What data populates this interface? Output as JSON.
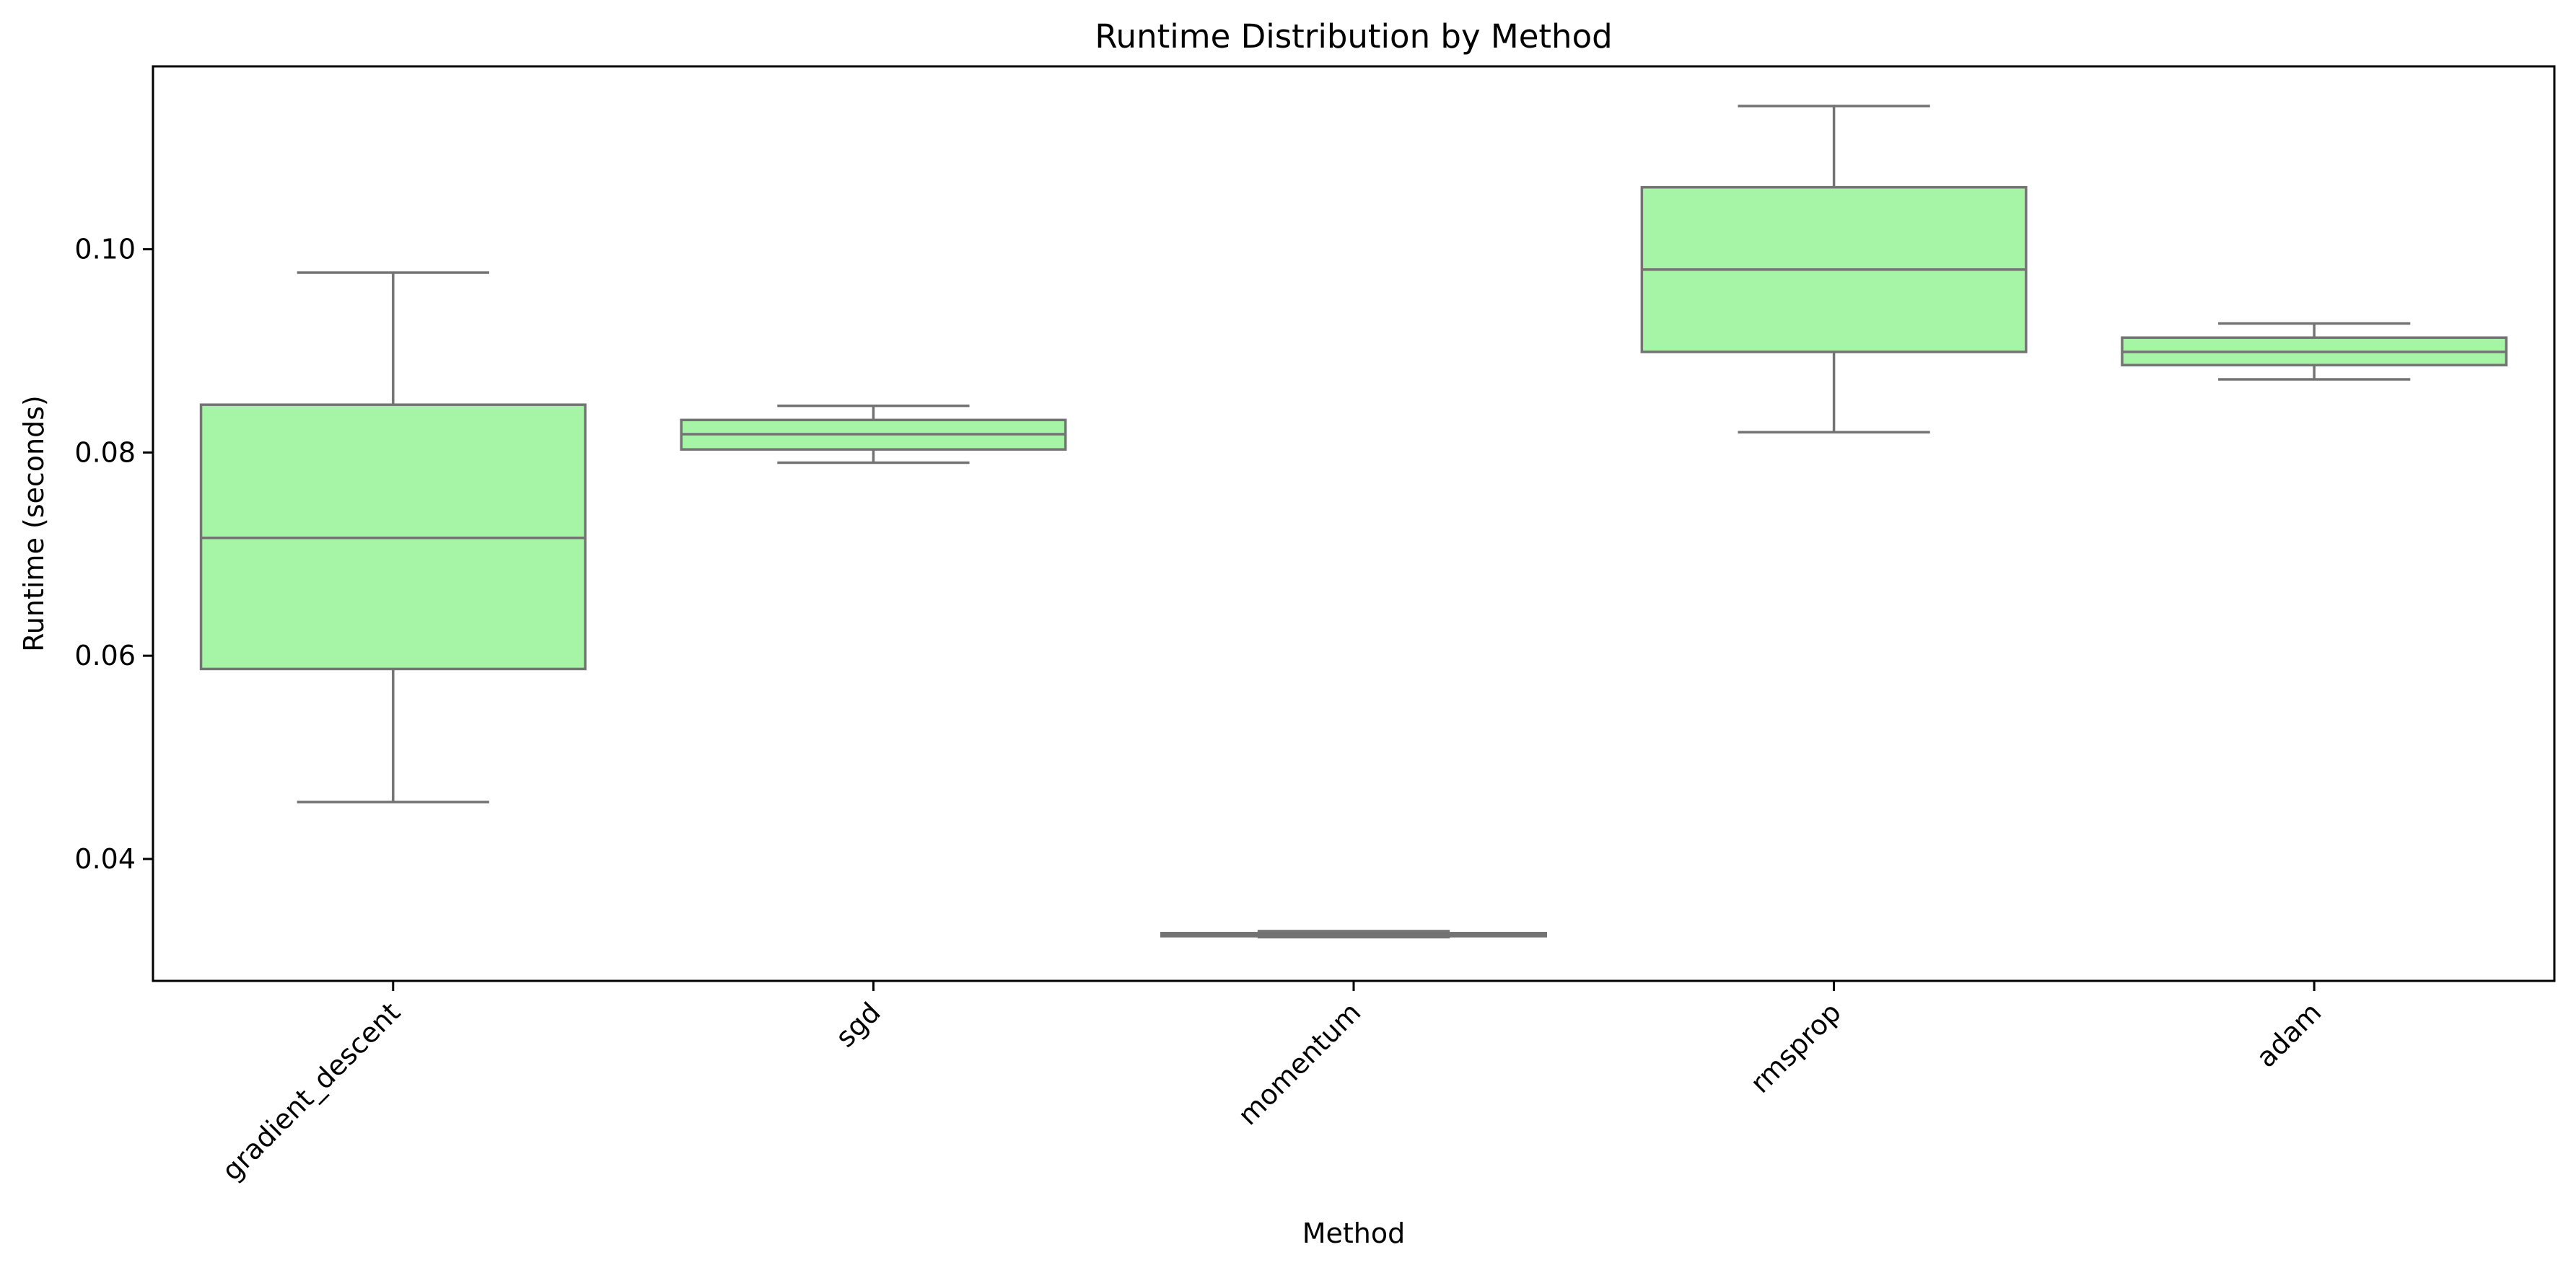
{
  "chart_data": {
    "type": "box",
    "title": "Runtime Distribution by Method",
    "xlabel": "Method",
    "ylabel": "Runtime (seconds)",
    "categories": [
      "gradient_descent",
      "sgd",
      "momentum",
      "rmsprop",
      "adam"
    ],
    "boxes": [
      {
        "category": "gradient_descent",
        "whisker_low": 0.0456,
        "q1": 0.0587,
        "median": 0.0716,
        "q3": 0.0847,
        "whisker_high": 0.0977
      },
      {
        "category": "sgd",
        "whisker_low": 0.079,
        "q1": 0.0803,
        "median": 0.0818,
        "q3": 0.0832,
        "whisker_high": 0.0846
      },
      {
        "category": "momentum",
        "whisker_low": 0.0323,
        "q1": 0.0324,
        "median": 0.0325,
        "q3": 0.0327,
        "whisker_high": 0.0329
      },
      {
        "category": "rmsprop",
        "whisker_low": 0.082,
        "q1": 0.0899,
        "median": 0.098,
        "q3": 0.1061,
        "whisker_high": 0.1141
      },
      {
        "category": "adam",
        "whisker_low": 0.0872,
        "q1": 0.0886,
        "median": 0.0899,
        "q3": 0.0913,
        "whisker_high": 0.0927
      }
    ],
    "ylim": [
      0.028,
      0.118
    ],
    "yticks": [
      0.04,
      0.06,
      0.08,
      0.1
    ],
    "ytick_labels": [
      "0.04",
      "0.06",
      "0.08",
      "0.10"
    ],
    "grid": false,
    "legend": "none",
    "box_fill_color": "#a6f5a6",
    "box_line_color": "#737373"
  }
}
